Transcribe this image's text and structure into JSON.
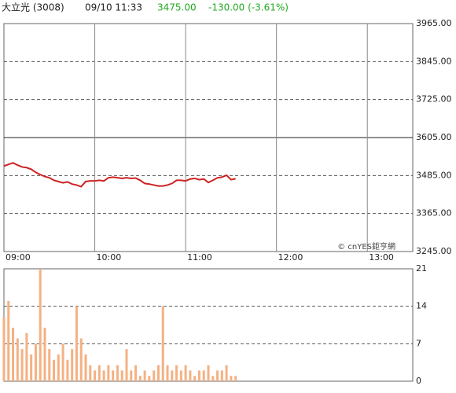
{
  "header": {
    "name": "大立光 (3008)",
    "time": "09/10 11:33",
    "price": "3475.00",
    "change": "-130.00 (-3.61%)"
  },
  "chart_data": [
    {
      "type": "line",
      "color": "#cc2222",
      "annotation": "© cnYES鉅亨網",
      "x": [
        "09:00",
        "09:03",
        "09:06",
        "09:09",
        "09:12",
        "09:15",
        "09:18",
        "09:21",
        "09:24",
        "09:27",
        "09:30",
        "09:33",
        "09:36",
        "09:39",
        "09:42",
        "09:45",
        "09:48",
        "09:51",
        "09:54",
        "09:57",
        "10:00",
        "10:03",
        "10:06",
        "10:09",
        "10:12",
        "10:15",
        "10:18",
        "10:21",
        "10:24",
        "10:27",
        "10:30",
        "10:33",
        "10:36",
        "10:39",
        "10:42",
        "10:45",
        "10:48",
        "10:51",
        "10:54",
        "10:57",
        "11:00",
        "11:03",
        "11:06",
        "11:09",
        "11:12",
        "11:15",
        "11:18",
        "11:21",
        "11:24",
        "11:27",
        "11:30",
        "11:33"
      ],
      "values": [
        3515,
        3520,
        3525,
        3518,
        3512,
        3510,
        3505,
        3495,
        3488,
        3482,
        3478,
        3470,
        3466,
        3462,
        3465,
        3458,
        3455,
        3450,
        3466,
        3468,
        3468,
        3470,
        3468,
        3478,
        3480,
        3478,
        3476,
        3478,
        3476,
        3477,
        3470,
        3460,
        3458,
        3455,
        3452,
        3452,
        3455,
        3460,
        3470,
        3470,
        3468,
        3474,
        3476,
        3472,
        3474,
        3463,
        3470,
        3478,
        3480,
        3486,
        3472,
        3475
      ],
      "xlim": [
        "09:00",
        "13:30"
      ],
      "xticks": [
        "09:00",
        "10:00",
        "11:00",
        "12:00",
        "13:00"
      ],
      "ylim": [
        3245,
        3965
      ],
      "baseline": 3605,
      "yticks": [
        {
          "value": 3245,
          "label": "3245.00"
        },
        {
          "value": 3365,
          "label": "3365.00"
        },
        {
          "value": 3485,
          "label": "3485.00"
        },
        {
          "value": 3605,
          "label": "3605.00"
        },
        {
          "value": 3725,
          "label": "3725.00"
        },
        {
          "value": 3845,
          "label": "3845.00"
        },
        {
          "value": 3965,
          "label": "3965.00"
        }
      ]
    },
    {
      "type": "bar",
      "color": "#f4b183",
      "x": [
        "09:00",
        "09:03",
        "09:06",
        "09:09",
        "09:12",
        "09:15",
        "09:18",
        "09:21",
        "09:24",
        "09:27",
        "09:30",
        "09:33",
        "09:36",
        "09:39",
        "09:42",
        "09:45",
        "09:48",
        "09:51",
        "09:54",
        "09:57",
        "10:00",
        "10:03",
        "10:06",
        "10:09",
        "10:12",
        "10:15",
        "10:18",
        "10:21",
        "10:24",
        "10:27",
        "10:30",
        "10:33",
        "10:36",
        "10:39",
        "10:42",
        "10:45",
        "10:48",
        "10:51",
        "10:54",
        "10:57",
        "11:00",
        "11:03",
        "11:06",
        "11:09",
        "11:12",
        "11:15",
        "11:18",
        "11:21",
        "11:24",
        "11:27",
        "11:30",
        "11:33"
      ],
      "values": [
        12,
        15,
        10,
        8,
        6,
        9,
        5,
        7,
        21,
        10,
        6,
        4,
        5,
        7,
        4,
        6,
        14,
        8,
        5,
        3,
        2,
        3,
        2,
        3,
        2,
        3,
        2,
        6,
        2,
        3,
        1,
        2,
        1,
        2,
        3,
        14,
        3,
        2,
        3,
        2,
        3,
        2,
        1,
        2,
        2,
        3,
        1,
        2,
        2,
        3,
        1,
        1
      ],
      "xlim": [
        "09:00",
        "13:30"
      ],
      "ylim": [
        0,
        21
      ],
      "yticks": [
        0,
        7,
        14,
        21
      ]
    }
  ]
}
